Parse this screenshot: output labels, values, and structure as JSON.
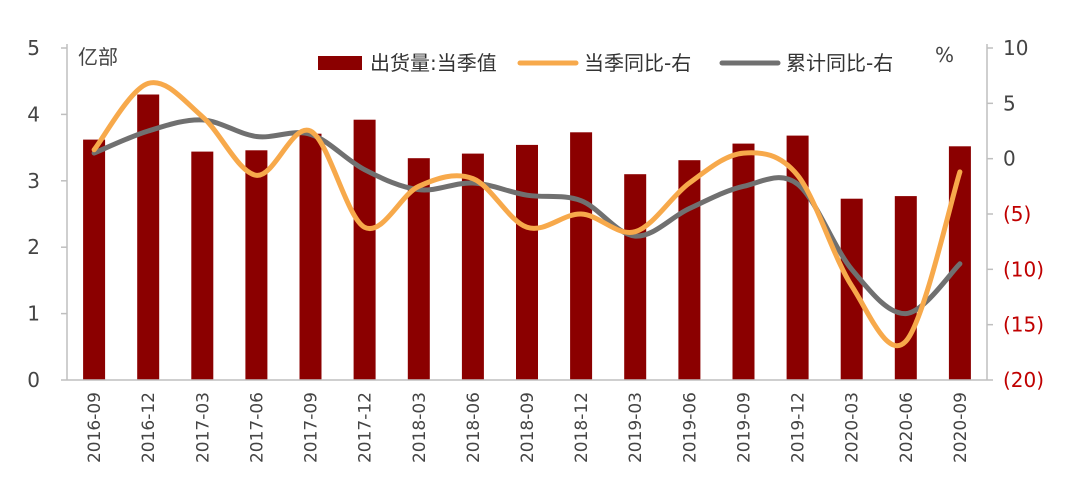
{
  "chart_data": {
    "type": "bar",
    "categories": [
      "2016-09",
      "2016-12",
      "2017-03",
      "2017-06",
      "2017-09",
      "2017-12",
      "2018-03",
      "2018-06",
      "2018-09",
      "2018-12",
      "2019-03",
      "2019-06",
      "2019-09",
      "2019-12",
      "2020-03",
      "2020-06",
      "2020-09"
    ],
    "series": [
      {
        "name": "出货量:当季值",
        "type": "bar",
        "axis": "left",
        "values": [
          3.62,
          4.3,
          3.44,
          3.46,
          3.71,
          3.92,
          3.34,
          3.41,
          3.54,
          3.73,
          3.1,
          3.31,
          3.56,
          3.68,
          2.73,
          2.77,
          3.52
        ]
      },
      {
        "name": "当季同比-右",
        "type": "line",
        "axis": "right",
        "values": [
          0.8,
          6.8,
          3.8,
          -1.5,
          2.5,
          -6.2,
          -2.5,
          -1.8,
          -6.2,
          -5.0,
          -6.6,
          -2.2,
          0.5,
          -1.5,
          -11.5,
          -16.5,
          -1.2
        ]
      },
      {
        "name": "累计同比-右",
        "type": "line",
        "axis": "right",
        "values": [
          0.5,
          2.5,
          3.5,
          2.0,
          2.2,
          -1.0,
          -2.8,
          -2.2,
          -3.3,
          -3.8,
          -7.0,
          -4.5,
          -2.5,
          -2.3,
          -10.0,
          -14.0,
          -9.5
        ]
      }
    ],
    "left_axis": {
      "unit": "亿部",
      "ylim": [
        0,
        5
      ],
      "ticks": [
        "0",
        "1",
        "2",
        "3",
        "4",
        "5"
      ]
    },
    "right_axis": {
      "unit": "%",
      "ylim": [
        -20,
        10
      ],
      "ticks": [
        "(20)",
        "(15)",
        "(10)",
        "(5)",
        "0",
        "5",
        "10"
      ]
    },
    "legend_position": "top",
    "grid": false,
    "colors": {
      "bar": "#8b0000",
      "line_quarter": "#f7a94b",
      "line_cumulative": "#707070",
      "negative_tick": "#c00000"
    }
  }
}
